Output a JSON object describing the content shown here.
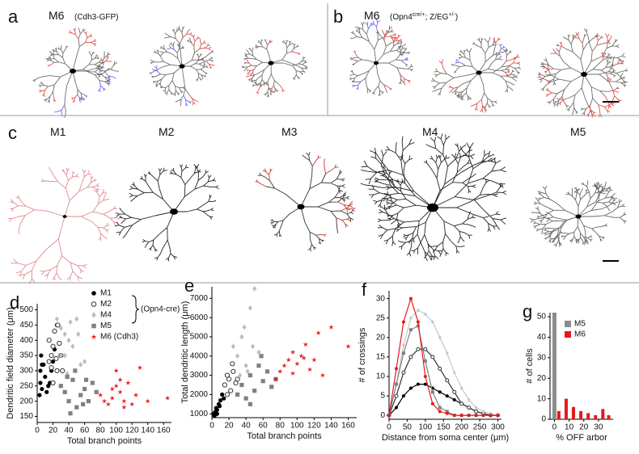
{
  "panels": {
    "a": {
      "label": "a",
      "title": "M6",
      "subtitle": "(Cdh3-GFP)"
    },
    "b": {
      "label": "b",
      "title": "M6",
      "subtitle": [
        "(Opn4",
        "cre/+",
        "; Z/EG",
        "+/-",
        ")"
      ]
    },
    "c": {
      "label": "c",
      "cells": [
        "M1",
        "M2",
        "M3",
        "M4",
        "M5"
      ]
    }
  },
  "chart_data": [
    {
      "type": "scatter",
      "label": "d",
      "xlabel": "Total branch points",
      "ylabel": "Dendritic field diameter (μm)",
      "xlim": [
        0,
        170
      ],
      "xticks": [
        0,
        20,
        40,
        60,
        80,
        100,
        120,
        140,
        160
      ],
      "ylim": [
        130,
        520
      ],
      "yticks": [
        150,
        200,
        250,
        300,
        350,
        400,
        450,
        500
      ],
      "annotation": "(Opn4-cre)",
      "series": [
        {
          "name": "M1",
          "color": "#000000",
          "marker": "filled-circle",
          "x": [
            3,
            4,
            5,
            6,
            8,
            10,
            12,
            14,
            16,
            18,
            20,
            22,
            25,
            4,
            6
          ],
          "values": [
            220,
            300,
            350,
            240,
            320,
            280,
            230,
            250,
            260,
            300,
            330,
            370,
            450,
            260,
            320
          ]
        },
        {
          "name": "M2",
          "color": "#333333",
          "marker": "open-circle",
          "x": [
            15,
            18,
            20,
            22,
            25,
            28,
            30,
            18,
            24,
            32,
            20,
            26,
            15
          ],
          "values": [
            400,
            350,
            380,
            430,
            300,
            390,
            350,
            310,
            340,
            300,
            260,
            450,
            330
          ]
        },
        {
          "name": "M4",
          "color": "#bdbdbd",
          "marker": "diamond",
          "x": [
            25,
            30,
            35,
            40,
            45,
            35,
            50,
            55,
            42,
            30,
            48,
            60,
            38,
            52
          ],
          "values": [
            470,
            440,
            420,
            400,
            380,
            350,
            470,
            320,
            460,
            350,
            300,
            330,
            290,
            420
          ]
        },
        {
          "name": "M5",
          "color": "#808080",
          "marker": "square",
          "x": [
            30,
            35,
            40,
            45,
            50,
            55,
            60,
            65,
            70,
            42,
            58,
            48,
            75,
            38,
            62
          ],
          "values": [
            250,
            230,
            200,
            270,
            180,
            220,
            240,
            200,
            260,
            160,
            190,
            300,
            230,
            280,
            270
          ]
        },
        {
          "name": "M6 (Cdh3)",
          "color": "#e41a1c",
          "marker": "star",
          "x": [
            80,
            85,
            90,
            95,
            100,
            105,
            110,
            115,
            120,
            125,
            130,
            140,
            165,
            100,
            110,
            95,
            105
          ],
          "values": [
            220,
            200,
            190,
            210,
            250,
            230,
            200,
            260,
            190,
            220,
            310,
            200,
            210,
            300,
            180,
            240,
            270
          ]
        }
      ]
    },
    {
      "type": "scatter",
      "label": "e",
      "xlabel": "Total branch points",
      "ylabel": "Total dendritic length (μm)",
      "xlim": [
        0,
        170
      ],
      "xticks": [
        0,
        20,
        40,
        60,
        80,
        100,
        120,
        140,
        160
      ],
      "ylim": [
        800,
        7600
      ],
      "yticks": [
        1000,
        2000,
        3000,
        4000,
        5000,
        6000,
        7000
      ],
      "series": [
        {
          "color": "#000000",
          "marker": "filled-circle",
          "x": [
            2,
            3,
            4,
            5,
            6,
            8,
            10,
            12,
            14,
            6,
            9
          ],
          "values": [
            1000,
            900,
            1100,
            1300,
            1200,
            1500,
            1700,
            2000,
            1800,
            1000,
            1400
          ]
        },
        {
          "color": "#333333",
          "marker": "open-circle",
          "x": [
            15,
            18,
            20,
            22,
            25,
            28,
            18,
            24,
            30
          ],
          "values": [
            2500,
            3000,
            2800,
            2200,
            3200,
            2600,
            2000,
            3600,
            2800
          ]
        },
        {
          "color": "#bdbdbd",
          "marker": "diamond",
          "x": [
            25,
            30,
            35,
            40,
            45,
            50,
            38,
            48,
            42,
            55,
            33
          ],
          "values": [
            4500,
            4000,
            5000,
            3500,
            6500,
            7500,
            5500,
            4500,
            3200,
            4200,
            3000
          ]
        },
        {
          "color": "#808080",
          "marker": "square",
          "x": [
            30,
            35,
            40,
            45,
            50,
            55,
            60,
            65,
            70,
            45,
            58,
            75
          ],
          "values": [
            2000,
            2500,
            1800,
            3000,
            2200,
            3500,
            2700,
            3200,
            2400,
            1500,
            4000,
            2800
          ]
        },
        {
          "color": "#e41a1c",
          "marker": "star",
          "x": [
            75,
            80,
            85,
            90,
            95,
            100,
            105,
            110,
            115,
            120,
            125,
            130,
            140,
            160,
            95,
            108
          ],
          "values": [
            2800,
            3200,
            3500,
            3800,
            4200,
            3600,
            4000,
            4600,
            3300,
            3800,
            5200,
            3000,
            5500,
            4500,
            3100,
            3900
          ]
        }
      ]
    },
    {
      "type": "line",
      "label": "f",
      "xlabel": "Distance from soma center (μm)",
      "ylabel": "# of crossings",
      "xlim": [
        0,
        310
      ],
      "xticks": [
        0,
        50,
        100,
        150,
        200,
        250,
        300
      ],
      "ylim": [
        -1,
        32
      ],
      "yticks": [
        0,
        5,
        10,
        15,
        20,
        25,
        30
      ],
      "x": [
        0,
        20,
        40,
        60,
        80,
        100,
        120,
        140,
        160,
        180,
        200,
        220,
        240,
        260,
        280,
        300
      ],
      "series": [
        {
          "color": "#000000",
          "marker": "filled-circle",
          "values": [
            0,
            2,
            5,
            7,
            8,
            8,
            7,
            6,
            5,
            4,
            3,
            2,
            1,
            0.5,
            0,
            0
          ]
        },
        {
          "color": "#333333",
          "marker": "open-circle",
          "values": [
            0,
            5,
            11,
            15,
            17,
            17,
            15,
            12,
            9,
            6,
            3,
            2,
            1,
            0.5,
            0,
            0
          ]
        },
        {
          "color": "#c8c8c8",
          "marker": "diamond",
          "values": [
            0,
            8,
            18,
            25,
            27,
            26,
            24,
            20,
            16,
            11,
            7,
            4,
            2,
            1,
            0.5,
            0
          ]
        },
        {
          "color": "#808080",
          "marker": "square",
          "values": [
            0,
            8,
            16,
            22,
            23,
            14,
            6,
            2,
            1,
            0,
            0,
            0,
            0,
            0,
            0,
            0
          ]
        },
        {
          "color": "#e41a1c",
          "marker": "filled-circle",
          "values": [
            0,
            12,
            24,
            30,
            24,
            10,
            3,
            1,
            0.5,
            0,
            0,
            0,
            0,
            0,
            0,
            0
          ]
        }
      ]
    },
    {
      "type": "bar",
      "label": "g",
      "xlabel": "% OFF arbor",
      "ylabel": "# of cells",
      "xlim": [
        -3,
        40
      ],
      "xticks": [
        0,
        10,
        20,
        30
      ],
      "ylim": [
        0,
        52
      ],
      "yticks": [
        0,
        10,
        20,
        30,
        40,
        50
      ],
      "series": [
        {
          "name": "M5",
          "color": "#8c8c8c",
          "x": [
            0
          ],
          "values": [
            52
          ]
        },
        {
          "name": "M6",
          "color": "#e41a1c",
          "x": [
            3,
            8,
            13,
            18,
            23,
            28,
            33,
            37
          ],
          "values": [
            4,
            10,
            6,
            4,
            3,
            2,
            5,
            2
          ]
        }
      ]
    }
  ]
}
